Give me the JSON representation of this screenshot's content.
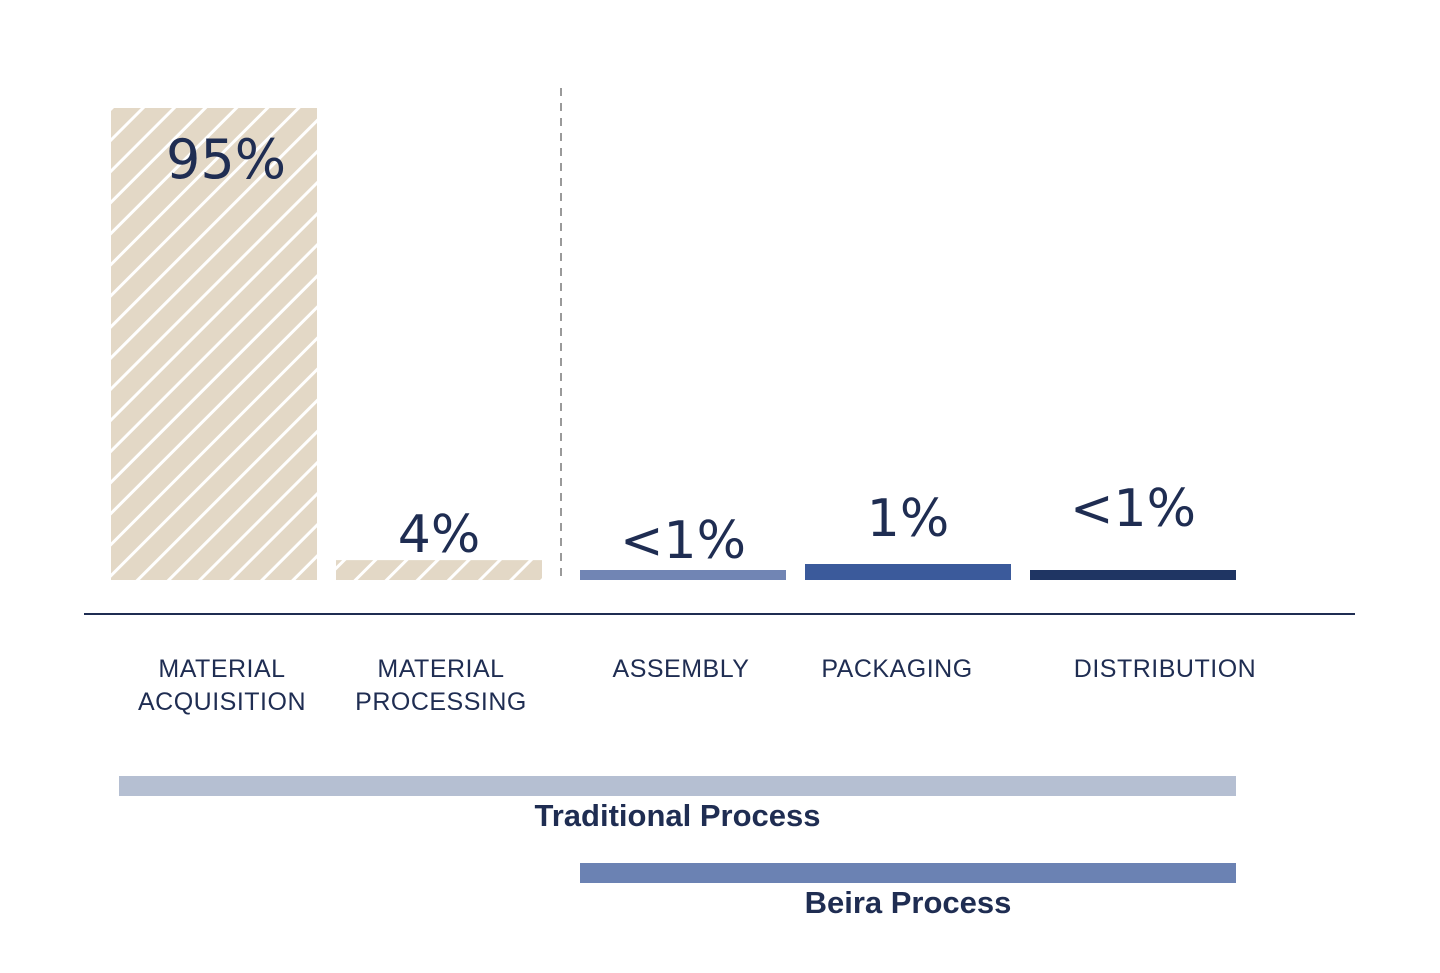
{
  "chart_data": {
    "type": "bar",
    "categories": [
      [
        "MATERIAL",
        "ACQUISITION"
      ],
      [
        "MATERIAL",
        "PROCESSING"
      ],
      [
        "ASSEMBLY"
      ],
      [
        "PACKAGING"
      ],
      [
        "DISTRIBUTION"
      ]
    ],
    "values": [
      95,
      4,
      0.5,
      1,
      0.5
    ],
    "data_labels": [
      "95%",
      "4%",
      "<1%",
      "1%",
      "<1%"
    ],
    "ylim": [
      0,
      95
    ],
    "grid": false,
    "bar_styles": [
      "hatched",
      "hatched",
      "solid",
      "solid",
      "solid"
    ],
    "bar_colors": [
      "#e3d8c6",
      "#e3d8c6",
      "#7185b4",
      "#3b5a9b",
      "#1f3563"
    ],
    "divider_after_index": 1,
    "process_ranges": [
      {
        "label": "Traditional Process",
        "from": 0,
        "to": 4,
        "color": "#b5bfd2"
      },
      {
        "label": "Beira Process",
        "from": 2,
        "to": 4,
        "color": "#6b82b3"
      }
    ]
  },
  "colors": {
    "text": "#1f2d52",
    "axis": "#1f2d52",
    "divider": "#9a9a9a",
    "hatch_line": "#ffffff"
  }
}
